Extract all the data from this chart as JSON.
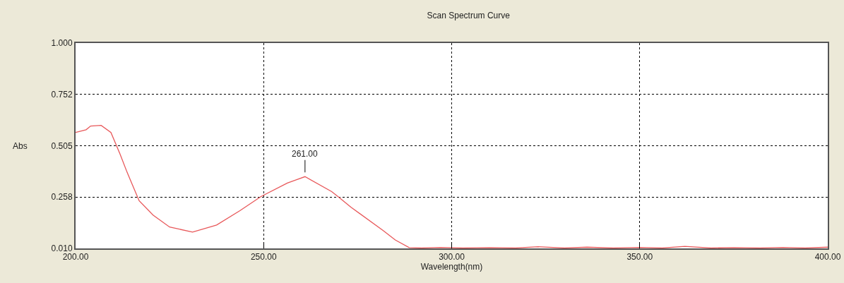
{
  "chart_data": {
    "type": "line",
    "title": "Scan Spectrum Curve",
    "xlabel": "Wavelength(nm)",
    "ylabel": "Abs",
    "x": [
      200,
      202.8,
      204,
      206.8,
      209.4,
      211.8,
      213.7,
      216.9,
      220.6,
      225,
      231.1,
      237.5,
      243.7,
      249.3,
      256.3,
      261,
      268.1,
      270,
      273.2,
      281.8,
      285,
      288.7,
      292,
      297,
      303,
      310,
      317,
      323,
      330,
      336,
      343,
      350,
      356,
      362,
      369,
      375,
      382,
      388,
      394,
      400
    ],
    "series": [
      {
        "color": "#e8585a",
        "values": [
          0.569,
          0.582,
          0.6,
          0.603,
          0.569,
          0.466,
          0.377,
          0.24,
          0.171,
          0.113,
          0.089,
          0.123,
          0.192,
          0.26,
          0.325,
          0.356,
          0.284,
          0.257,
          0.209,
          0.096,
          0.051,
          0.014,
          0.012,
          0.015,
          0.012,
          0.014,
          0.012,
          0.018,
          0.012,
          0.016,
          0.012,
          0.015,
          0.012,
          0.02,
          0.012,
          0.014,
          0.012,
          0.015,
          0.012,
          0.016
        ]
      }
    ],
    "annotations": [
      {
        "text": "261.00",
        "x": 261,
        "y": 0.356
      }
    ],
    "xlim": [
      200,
      400
    ],
    "ylim": [
      0.01,
      1.0
    ],
    "xticks": [
      {
        "value": 200,
        "label": "200.00"
      },
      {
        "value": 250,
        "label": "250.00"
      },
      {
        "value": 300,
        "label": "300.00"
      },
      {
        "value": 350,
        "label": "350.00"
      },
      {
        "value": 400,
        "label": "400.00"
      }
    ],
    "yticks": [
      {
        "value": 0.01,
        "label": "0.010"
      },
      {
        "value": 0.258,
        "label": "0.258"
      },
      {
        "value": 0.505,
        "label": "0.505"
      },
      {
        "value": 0.752,
        "label": "0.752"
      },
      {
        "value": 1.0,
        "label": "1.000"
      }
    ],
    "grid": true,
    "marker": "none",
    "line_style": "solid"
  }
}
